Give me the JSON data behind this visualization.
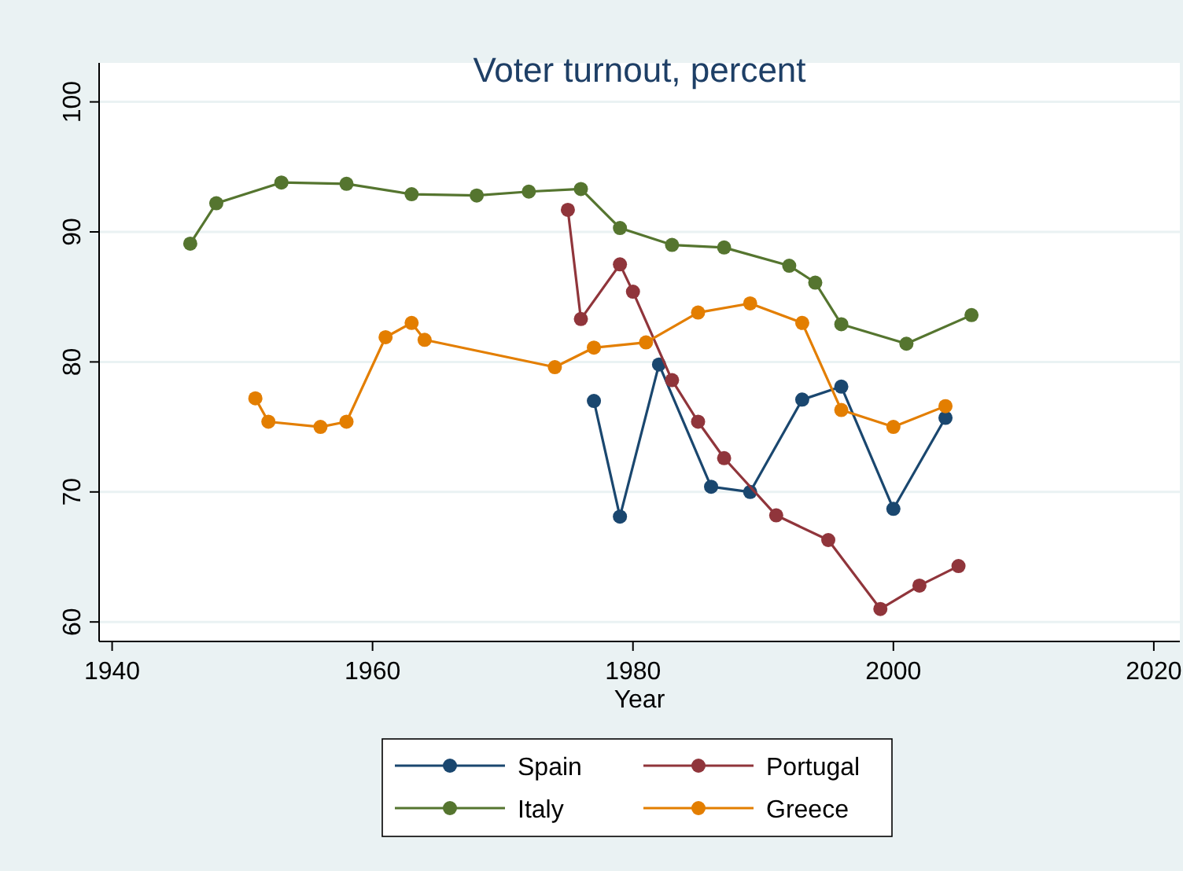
{
  "chart_data": {
    "type": "line",
    "title": "Voter turnout, percent",
    "xlabel": "Year",
    "xlim": [
      1939,
      2022
    ],
    "xticks": [
      1940,
      1960,
      1980,
      2000,
      2020
    ],
    "ylim": [
      58.5,
      103
    ],
    "yticks": [
      60,
      70,
      80,
      90,
      100
    ],
    "grid": "y",
    "legend": "bottom",
    "marker": "circle",
    "line_style": "solid",
    "series": [
      {
        "name": "Spain",
        "color": "#1a476f",
        "x": [
          1977,
          1979,
          1982,
          1986,
          1989,
          1993,
          1996,
          2000,
          2004
        ],
        "values": [
          77.0,
          68.1,
          79.8,
          70.4,
          70.0,
          77.1,
          78.1,
          68.7,
          75.7
        ]
      },
      {
        "name": "Portugal",
        "color": "#90353b",
        "x": [
          1975,
          1976,
          1979,
          1980,
          1983,
          1985,
          1987,
          1991,
          1995,
          1999,
          2002,
          2005
        ],
        "values": [
          91.7,
          83.3,
          87.5,
          85.4,
          78.6,
          75.4,
          72.6,
          68.2,
          66.3,
          61.0,
          62.8,
          64.3
        ]
      },
      {
        "name": "Italy",
        "color": "#55752f",
        "x": [
          1946,
          1948,
          1953,
          1958,
          1963,
          1968,
          1972,
          1976,
          1979,
          1983,
          1987,
          1992,
          1994,
          1996,
          2001,
          2006
        ],
        "values": [
          89.1,
          92.2,
          93.8,
          93.7,
          92.9,
          92.8,
          93.1,
          93.3,
          90.3,
          89.0,
          88.8,
          87.4,
          86.1,
          82.9,
          81.4,
          83.6
        ]
      },
      {
        "name": "Greece",
        "color": "#e37e00",
        "x": [
          1951,
          1952,
          1956,
          1958,
          1961,
          1963,
          1964,
          1974,
          1977,
          1981,
          1985,
          1989,
          1993,
          1996,
          2000,
          2004
        ],
        "values": [
          77.2,
          75.4,
          75.0,
          75.4,
          81.9,
          83.0,
          81.7,
          79.6,
          81.1,
          81.5,
          83.8,
          84.5,
          83.0,
          76.3,
          75.0,
          76.6
        ]
      }
    ]
  }
}
